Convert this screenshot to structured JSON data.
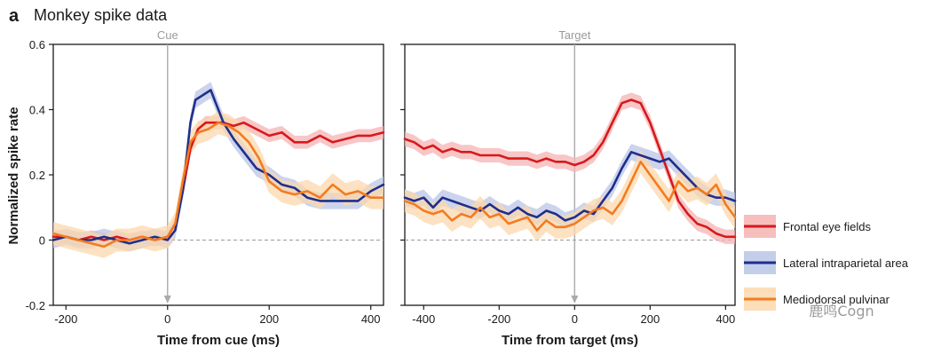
{
  "figure": {
    "panel_letter": "a",
    "title": "Monkey spike data",
    "watermark": "鹿鸣Cogn"
  },
  "colors": {
    "frontal_eye_fields": "#d7191c",
    "lateral_intraparietal_area": "#1f2e8c",
    "mediodorsal_pulvinar": "#f47b20",
    "frontal_eye_fields_band": "#f6b3b3",
    "lateral_intraparietal_area_band": "#b9c6e6",
    "mediodorsal_pulvinar_band": "#fbd8ad"
  },
  "legend": [
    {
      "key": "frontal_eye_fields",
      "label": "Frontal eye fields"
    },
    {
      "key": "lateral_intraparietal_area",
      "label": "Lateral intraparietal area"
    },
    {
      "key": "mediodorsal_pulvinar",
      "label": "Mediodorsal pulvinar"
    }
  ],
  "chart_data": [
    {
      "type": "line",
      "event_label": "Cue",
      "xlabel": "Time from cue (ms)",
      "ylabel": "Normalized spike rate",
      "xlim": [
        -225,
        425
      ],
      "ylim": [
        -0.2,
        0.6
      ],
      "xticks": [
        -200,
        0,
        200,
        400
      ],
      "yticks": [
        -0.2,
        0,
        0.2,
        0.4,
        0.6
      ],
      "series": [
        {
          "key": "frontal_eye_fields",
          "name": "Frontal eye fields",
          "error": 0.02,
          "x": [
            -225,
            -200,
            -175,
            -150,
            -125,
            -100,
            -75,
            -50,
            -25,
            0,
            15,
            30,
            45,
            60,
            75,
            90,
            110,
            130,
            150,
            175,
            200,
            225,
            250,
            275,
            300,
            325,
            350,
            375,
            400,
            425
          ],
          "y": [
            0.01,
            0.01,
            0.0,
            0.01,
            0.0,
            0.01,
            0.0,
            0.01,
            0.0,
            0.01,
            0.05,
            0.15,
            0.28,
            0.34,
            0.36,
            0.36,
            0.36,
            0.35,
            0.36,
            0.34,
            0.32,
            0.33,
            0.3,
            0.3,
            0.32,
            0.3,
            0.31,
            0.32,
            0.32,
            0.33
          ]
        },
        {
          "key": "lateral_intraparietal_area",
          "name": "Lateral intraparietal area",
          "error": 0.025,
          "x": [
            -225,
            -200,
            -175,
            -150,
            -125,
            -100,
            -75,
            -50,
            -25,
            0,
            15,
            30,
            45,
            55,
            65,
            75,
            85,
            95,
            110,
            130,
            150,
            175,
            200,
            225,
            250,
            275,
            300,
            325,
            350,
            375,
            400,
            425
          ],
          "y": [
            0.0,
            0.01,
            0.0,
            0.0,
            0.01,
            0.0,
            -0.01,
            0.0,
            0.01,
            0.0,
            0.03,
            0.15,
            0.36,
            0.43,
            0.44,
            0.45,
            0.46,
            0.42,
            0.36,
            0.31,
            0.27,
            0.22,
            0.2,
            0.17,
            0.16,
            0.13,
            0.12,
            0.12,
            0.12,
            0.12,
            0.15,
            0.17
          ]
        },
        {
          "key": "mediodorsal_pulvinar",
          "name": "Mediodorsal pulvinar",
          "error": 0.035,
          "x": [
            -225,
            -200,
            -175,
            -150,
            -125,
            -100,
            -75,
            -50,
            -25,
            0,
            15,
            30,
            45,
            60,
            80,
            100,
            120,
            140,
            160,
            180,
            200,
            225,
            250,
            275,
            300,
            325,
            350,
            375,
            400,
            425
          ],
          "y": [
            0.02,
            0.01,
            0.0,
            -0.01,
            -0.02,
            0.0,
            0.0,
            0.01,
            0.0,
            0.01,
            0.05,
            0.18,
            0.3,
            0.33,
            0.34,
            0.36,
            0.35,
            0.33,
            0.3,
            0.25,
            0.18,
            0.15,
            0.14,
            0.15,
            0.13,
            0.17,
            0.14,
            0.15,
            0.13,
            0.13
          ]
        }
      ]
    },
    {
      "type": "line",
      "event_label": "Target",
      "xlabel": "Time from target (ms)",
      "ylabel": "",
      "xlim": [
        -450,
        425
      ],
      "ylim": [
        -0.2,
        0.6
      ],
      "xticks": [
        -400,
        -200,
        0,
        200,
        400
      ],
      "yticks": [
        -0.2,
        0,
        0.2,
        0.4,
        0.6
      ],
      "series": [
        {
          "key": "frontal_eye_fields",
          "name": "Frontal eye fields",
          "error": 0.022,
          "x": [
            -450,
            -425,
            -400,
            -375,
            -350,
            -325,
            -300,
            -275,
            -250,
            -225,
            -200,
            -175,
            -150,
            -125,
            -100,
            -75,
            -50,
            -25,
            0,
            25,
            50,
            75,
            100,
            125,
            150,
            175,
            200,
            225,
            250,
            275,
            300,
            325,
            350,
            375,
            400,
            425
          ],
          "y": [
            0.31,
            0.3,
            0.28,
            0.29,
            0.27,
            0.28,
            0.27,
            0.27,
            0.26,
            0.26,
            0.26,
            0.25,
            0.25,
            0.25,
            0.24,
            0.25,
            0.24,
            0.24,
            0.23,
            0.24,
            0.26,
            0.3,
            0.36,
            0.42,
            0.43,
            0.42,
            0.36,
            0.28,
            0.2,
            0.12,
            0.08,
            0.05,
            0.04,
            0.02,
            0.01,
            0.01
          ]
        },
        {
          "key": "lateral_intraparietal_area",
          "name": "Lateral intraparietal area",
          "error": 0.025,
          "x": [
            -450,
            -425,
            -400,
            -375,
            -350,
            -325,
            -300,
            -275,
            -250,
            -225,
            -200,
            -175,
            -150,
            -125,
            -100,
            -75,
            -50,
            -25,
            0,
            25,
            50,
            75,
            100,
            125,
            150,
            175,
            200,
            225,
            250,
            275,
            300,
            325,
            350,
            375,
            400,
            425
          ],
          "y": [
            0.13,
            0.12,
            0.13,
            0.1,
            0.13,
            0.12,
            0.11,
            0.1,
            0.09,
            0.11,
            0.09,
            0.08,
            0.1,
            0.08,
            0.07,
            0.09,
            0.08,
            0.06,
            0.07,
            0.09,
            0.08,
            0.12,
            0.16,
            0.22,
            0.27,
            0.26,
            0.25,
            0.24,
            0.25,
            0.22,
            0.19,
            0.16,
            0.14,
            0.13,
            0.13,
            0.12
          ]
        },
        {
          "key": "mediodorsal_pulvinar",
          "name": "Mediodorsal pulvinar",
          "error": 0.035,
          "x": [
            -450,
            -425,
            -400,
            -375,
            -350,
            -325,
            -300,
            -275,
            -250,
            -225,
            -200,
            -175,
            -150,
            -125,
            -100,
            -75,
            -50,
            -25,
            0,
            25,
            50,
            75,
            100,
            125,
            150,
            175,
            200,
            225,
            250,
            275,
            300,
            325,
            350,
            375,
            400,
            425
          ],
          "y": [
            0.12,
            0.11,
            0.09,
            0.08,
            0.09,
            0.06,
            0.08,
            0.07,
            0.1,
            0.07,
            0.08,
            0.05,
            0.06,
            0.07,
            0.03,
            0.06,
            0.04,
            0.04,
            0.05,
            0.07,
            0.09,
            0.1,
            0.08,
            0.12,
            0.18,
            0.24,
            0.2,
            0.16,
            0.12,
            0.18,
            0.15,
            0.16,
            0.14,
            0.17,
            0.11,
            0.07
          ]
        }
      ]
    }
  ]
}
